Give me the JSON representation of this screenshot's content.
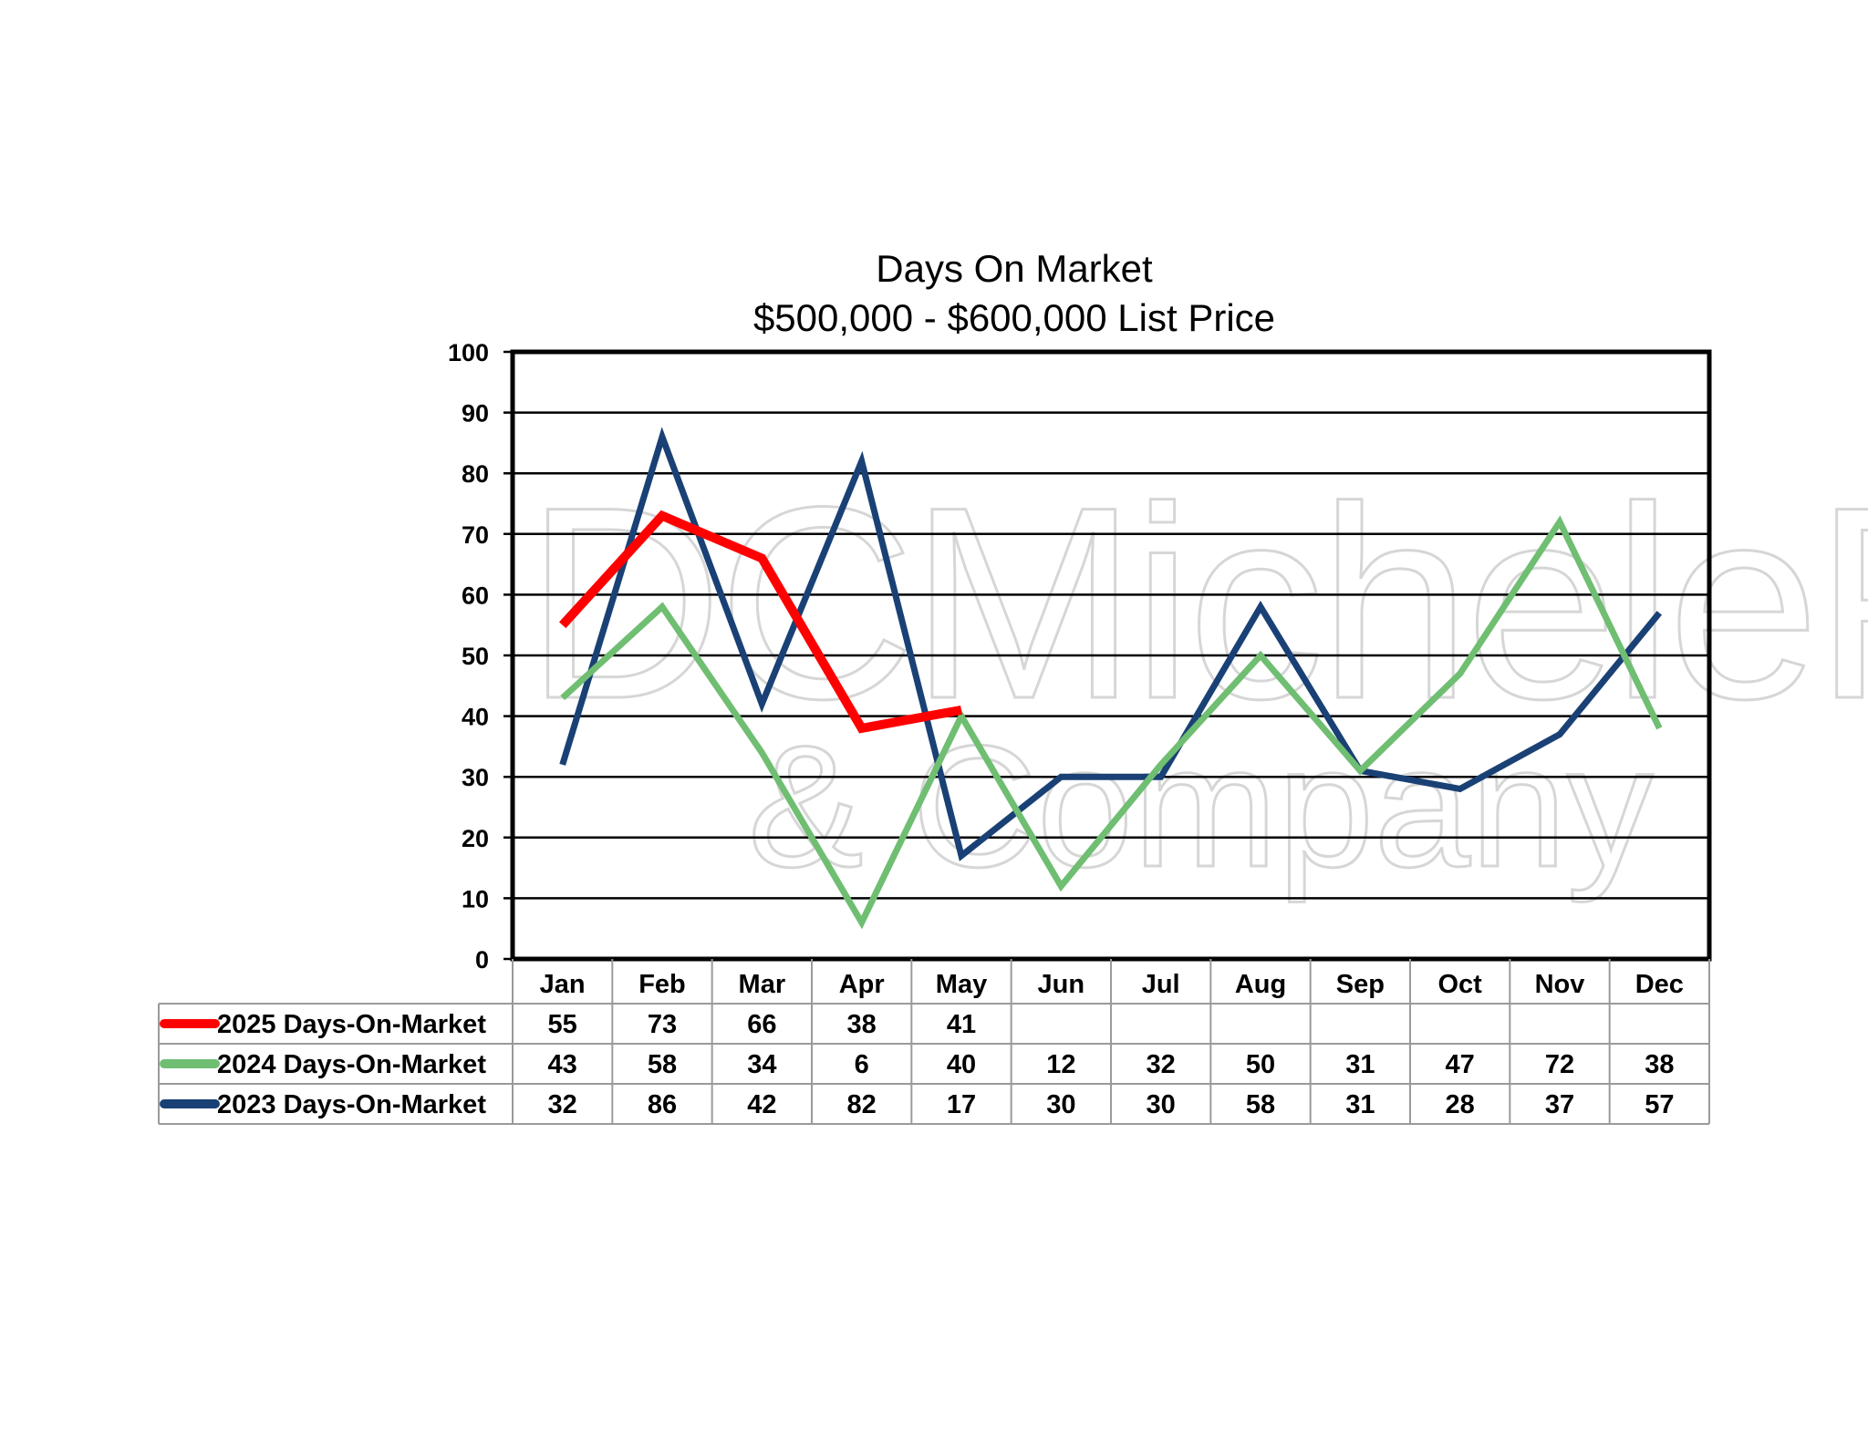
{
  "chart_data": {
    "type": "line",
    "title": "Days On Market",
    "subtitle": "$500,000 - $600,000 List Price",
    "watermark": {
      "line1": "DCMicheleFlory",
      "line2": "& Company"
    },
    "categories": [
      "Jan",
      "Feb",
      "Mar",
      "Apr",
      "May",
      "Jun",
      "Jul",
      "Aug",
      "Sep",
      "Oct",
      "Nov",
      "Dec"
    ],
    "ylim": [
      0,
      100
    ],
    "yticks": [
      0,
      10,
      20,
      30,
      40,
      50,
      60,
      70,
      80,
      90,
      100
    ],
    "grid": true,
    "legend": "data-table-below",
    "series": [
      {
        "name": "2025 Days-On-Market",
        "color": "#ff0000",
        "values": [
          55,
          73,
          66,
          38,
          41,
          null,
          null,
          null,
          null,
          null,
          null,
          null
        ]
      },
      {
        "name": "2024 Days-On-Market",
        "color": "#6fbe72",
        "values": [
          43,
          58,
          34,
          6,
          40,
          12,
          32,
          50,
          31,
          47,
          72,
          38
        ]
      },
      {
        "name": "2023 Days-On-Market",
        "color": "#1a4175",
        "values": [
          32,
          86,
          42,
          82,
          17,
          30,
          30,
          58,
          31,
          28,
          37,
          57
        ]
      }
    ]
  }
}
